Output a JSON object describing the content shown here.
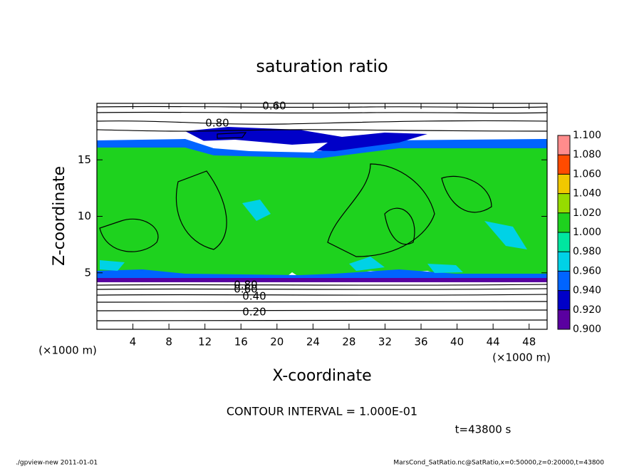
{
  "chart_data": {
    "type": "contour",
    "title": "saturation ratio",
    "x_label": "X-coordinate",
    "y_label": "Z-coordinate",
    "x_unit": "(×1000 m)",
    "y_unit": "(×1000 m)",
    "xlim": [
      0,
      50
    ],
    "ylim": [
      0,
      20
    ],
    "xticks": [
      4,
      8,
      12,
      16,
      20,
      24,
      28,
      32,
      36,
      40,
      44,
      48
    ],
    "yticks": [
      5,
      10,
      15
    ],
    "contour_labels": [
      "0.60",
      "0.80",
      "0.80",
      "0.60",
      "0.40",
      "0.20"
    ],
    "colorbar": {
      "ticks": [
        {
          "value": 0.9,
          "label": "0.900"
        },
        {
          "value": 0.92,
          "label": "0.920"
        },
        {
          "value": 0.94,
          "label": "0.940"
        },
        {
          "value": 0.96,
          "label": "0.960"
        },
        {
          "value": 0.98,
          "label": "0.980"
        },
        {
          "value": 1.0,
          "label": "1.000"
        },
        {
          "value": 1.02,
          "label": "1.020"
        },
        {
          "value": 1.04,
          "label": "1.040"
        },
        {
          "value": 1.06,
          "label": "1.060"
        },
        {
          "value": 1.08,
          "label": "1.080"
        },
        {
          "value": 1.1,
          "label": "1.100"
        }
      ],
      "colors": [
        "#5a00a0",
        "#0000c8",
        "#0064ff",
        "#00d2e6",
        "#00e6a0",
        "#1ed21e",
        "#96dc00",
        "#f0c800",
        "#ff4b00",
        "#ff8c8c"
      ]
    },
    "contour_interval": "CONTOUR INTERVAL = 1.000E-01",
    "time_label": "t=43800 s",
    "footer_left": "./gpview-new   2011-01-01",
    "footer_right": "MarsCond_SatRatio.nc@SatRatio,x=0:50000,z=0:20000,t=43800"
  }
}
